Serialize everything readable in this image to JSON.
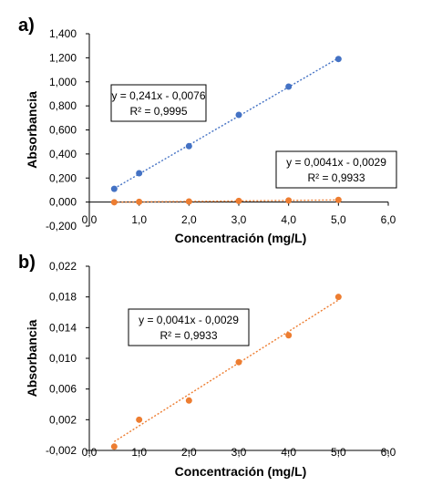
{
  "chart_data": [
    {
      "type": "scatter",
      "panel_label": "a)",
      "xlabel": "Concentración (mg/L)",
      "ylabel": "Absorbancia",
      "xlim": [
        0,
        6
      ],
      "ylim": [
        -0.2,
        1.4
      ],
      "x_ticks": [
        "0,0",
        "1,0",
        "2,0",
        "3,0",
        "4,0",
        "5,0",
        "6,0"
      ],
      "y_ticks": [
        "-0,200",
        "0,000",
        "0,200",
        "0,400",
        "0,600",
        "0,800",
        "1,000",
        "1,200",
        "1,400"
      ],
      "grid": false,
      "series": [
        {
          "color": "#4472C4",
          "x": [
            0.5,
            1,
            2,
            3,
            4,
            5
          ],
          "y": [
            0.11,
            0.24,
            0.465,
            0.725,
            0.96,
            1.19
          ],
          "trendline": {
            "slope": 0.241,
            "intercept": -0.0076
          },
          "equation": "y = 0,241x - 0,0076",
          "r2": "R² = 0,9995"
        },
        {
          "color": "#ED7D31",
          "x": [
            0.5,
            1,
            2,
            3,
            4,
            5
          ],
          "y": [
            -0.0015,
            0.002,
            0.0045,
            0.0095,
            0.013,
            0.018
          ],
          "trendline": {
            "slope": 0.0041,
            "intercept": -0.0029
          },
          "equation": "y = 0,0041x - 0,0029",
          "r2": "R² = 0,9933"
        }
      ]
    },
    {
      "type": "scatter",
      "panel_label": "b)",
      "xlabel": "Concentración (mg/L)",
      "ylabel": "Absorbancia",
      "xlim": [
        0,
        6
      ],
      "ylim": [
        -0.002,
        0.022
      ],
      "x_ticks": [
        "0,0",
        "1,0",
        "2,0",
        "3,0",
        "4,0",
        "5,0",
        "6,0"
      ],
      "y_ticks": [
        "-0,002",
        "0,002",
        "0,006",
        "0,010",
        "0,014",
        "0,018",
        "0,022"
      ],
      "grid": false,
      "series": [
        {
          "color": "#ED7D31",
          "x": [
            0.5,
            1,
            2,
            3,
            4,
            5
          ],
          "y": [
            -0.0015,
            0.002,
            0.0045,
            0.0095,
            0.013,
            0.018
          ],
          "trendline": {
            "slope": 0.0041,
            "intercept": -0.0029
          },
          "equation": "y = 0,0041x - 0,0029",
          "r2": "R² = 0,9933"
        }
      ]
    }
  ]
}
